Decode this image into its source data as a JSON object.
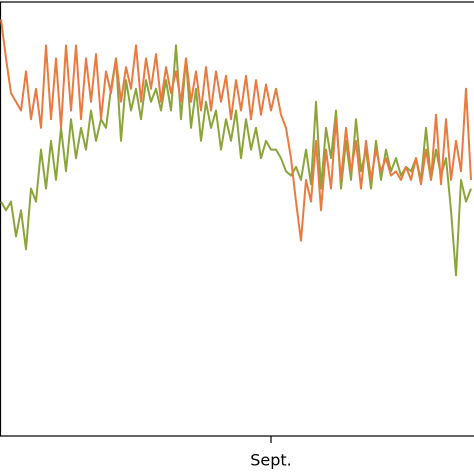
{
  "chart_data": {
    "type": "line",
    "x": [
      0,
      1,
      2,
      3,
      4,
      5,
      6,
      7,
      8,
      9,
      10,
      11,
      12,
      13,
      14,
      15,
      16,
      17,
      18,
      19,
      20,
      21,
      22,
      23,
      24,
      25,
      26,
      27,
      28,
      29,
      30,
      31,
      32,
      33,
      34,
      35,
      36,
      37,
      38,
      39,
      40,
      41,
      42,
      43,
      44,
      45,
      46,
      47,
      48,
      49,
      50,
      51,
      52,
      53,
      54,
      55,
      56,
      57,
      58,
      59,
      60,
      61,
      62,
      63,
      64,
      65,
      66,
      67,
      68,
      69,
      70,
      71,
      72,
      73,
      74,
      75,
      76,
      77,
      78,
      79,
      80,
      81,
      82,
      83,
      84,
      85,
      86,
      87,
      88,
      89,
      90,
      91,
      92,
      93,
      94
    ],
    "series": [
      {
        "color": "#8ba53b",
        "values": [
          54,
          52,
          54,
          46,
          52,
          43,
          57,
          54,
          66,
          57,
          68,
          59,
          71,
          61,
          73,
          64,
          71,
          66,
          75,
          68,
          73,
          71,
          80,
          87,
          68,
          82,
          75,
          80,
          73,
          82,
          77,
          80,
          75,
          82,
          75,
          90,
          73,
          87,
          71,
          80,
          68,
          77,
          71,
          75,
          66,
          73,
          68,
          75,
          64,
          73,
          66,
          71,
          64,
          68,
          66,
          66,
          64,
          61,
          60,
          62,
          59,
          66,
          58,
          77,
          57,
          71,
          64,
          75,
          57,
          68,
          59,
          73,
          61,
          66,
          57,
          68,
          59,
          66,
          61,
          64,
          60,
          62,
          61,
          64,
          59,
          71,
          59,
          66,
          60,
          64,
          52,
          37,
          59,
          54,
          57
        ]
      },
      {
        "color": "#ea7a3f",
        "values": [
          96,
          87,
          79,
          77,
          75,
          84,
          73,
          80,
          71,
          90,
          73,
          87,
          71,
          90,
          75,
          90,
          73,
          87,
          77,
          88,
          73,
          84,
          79,
          87,
          77,
          85,
          80,
          90,
          77,
          87,
          80,
          88,
          77,
          85,
          79,
          84,
          77,
          87,
          77,
          84,
          75,
          85,
          75,
          84,
          77,
          83,
          73,
          82,
          75,
          83,
          73,
          82,
          74,
          81,
          75,
          80,
          74,
          71,
          64,
          54,
          45,
          59,
          54,
          68,
          52,
          66,
          57,
          73,
          59,
          71,
          61,
          68,
          57,
          68,
          59,
          66,
          61,
          64,
          60,
          61,
          59,
          62,
          59,
          64,
          58,
          66,
          59,
          74,
          58,
          73,
          59,
          68,
          61,
          80,
          59
        ]
      }
    ],
    "xlim": [
      0,
      94
    ],
    "ylim": [
      0,
      100
    ],
    "xticks": [
      {
        "value": 54,
        "label": "Sept."
      }
    ]
  }
}
